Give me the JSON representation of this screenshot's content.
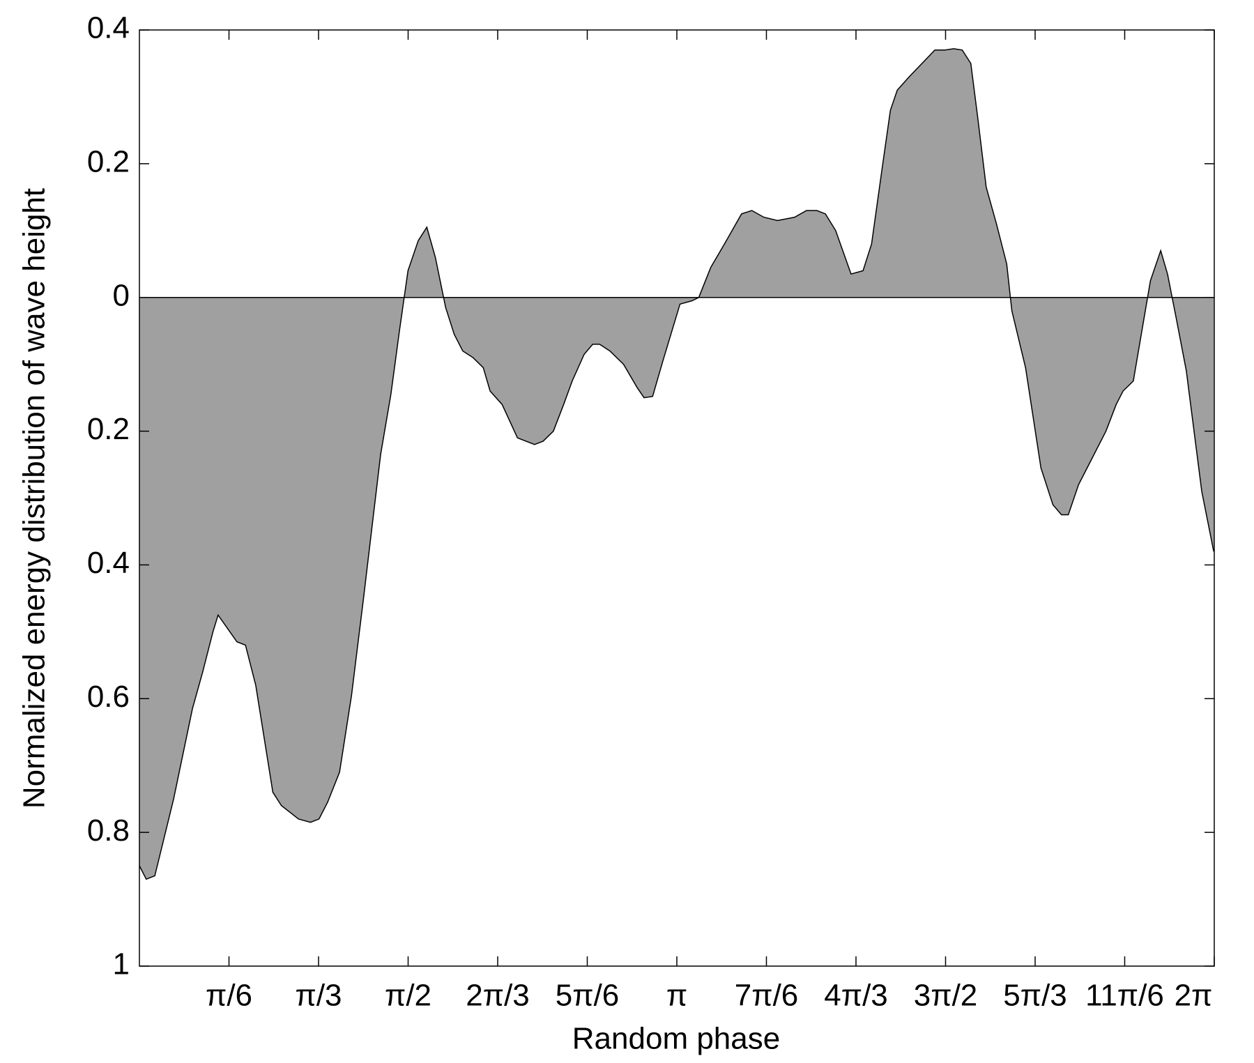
{
  "chart_data": {
    "type": "area",
    "x_label": "Random phase",
    "y_label": "Normalized energy distribution of wave height",
    "color": "#a0a0a0",
    "x": [
      0,
      0.04,
      0.09,
      0.2,
      0.31,
      0.37,
      0.43,
      0.46,
      0.57,
      0.62,
      0.68,
      0.78,
      0.83,
      0.93,
      1.0,
      1.05,
      1.1,
      1.17,
      1.24,
      1.31,
      1.41,
      1.47,
      1.52,
      1.57,
      1.63,
      1.68,
      1.73,
      1.79,
      1.84,
      1.89,
      1.95,
      2.01,
      2.05,
      2.12,
      2.21,
      2.31,
      2.36,
      2.42,
      2.48,
      2.53,
      2.6,
      2.65,
      2.69,
      2.75,
      2.83,
      2.91,
      2.95,
      3.0,
      3.06,
      3.16,
      3.23,
      3.27,
      3.34,
      3.42,
      3.52,
      3.58,
      3.65,
      3.73,
      3.83,
      3.9,
      3.96,
      4.01,
      4.07,
      4.16,
      4.23,
      4.28,
      4.34,
      4.39,
      4.43,
      4.5,
      4.65,
      4.71,
      4.76,
      4.81,
      4.86,
      4.9,
      4.95,
      5.01,
      5.07,
      5.1,
      5.18,
      5.27,
      5.34,
      5.39,
      5.43,
      5.49,
      5.56,
      5.65,
      5.71,
      5.75,
      5.81,
      5.91,
      5.97,
      6.01,
      6.06,
      6.12,
      6.21,
      6.28
    ],
    "values": [
      -0.85,
      -0.87,
      -0.865,
      -0.75,
      -0.615,
      -0.56,
      -0.5,
      -0.475,
      -0.515,
      -0.52,
      -0.58,
      -0.74,
      -0.76,
      -0.78,
      -0.785,
      -0.78,
      -0.755,
      -0.71,
      -0.595,
      -0.45,
      -0.235,
      -0.145,
      -0.05,
      0.04,
      0.085,
      0.105,
      0.06,
      -0.015,
      -0.055,
      -0.08,
      -0.09,
      -0.105,
      -0.14,
      -0.16,
      -0.21,
      -0.22,
      -0.215,
      -0.2,
      -0.16,
      -0.125,
      -0.085,
      -0.07,
      -0.07,
      -0.08,
      -0.1,
      -0.135,
      -0.15,
      -0.148,
      -0.095,
      -0.01,
      -0.005,
      0,
      0.045,
      0.08,
      0.125,
      0.13,
      0.12,
      0.115,
      0.12,
      0.13,
      0.13,
      0.125,
      0.1,
      0.035,
      0.04,
      0.08,
      0.19,
      0.28,
      0.31,
      0.33,
      0.37,
      0.37,
      0.372,
      0.37,
      0.35,
      0.27,
      0.165,
      0.11,
      0.05,
      -0.02,
      -0.105,
      -0.255,
      -0.31,
      -0.325,
      -0.325,
      -0.28,
      -0.245,
      -0.2,
      -0.16,
      -0.14,
      -0.125,
      0.025,
      0.07,
      0.035,
      -0.03,
      -0.11,
      -0.29,
      -0.38
    ],
    "xlim": [
      0,
      6.2832
    ],
    "ylim": [
      -1,
      0.4
    ],
    "xticks": [
      {
        "value": 0.5236,
        "label": "π/6"
      },
      {
        "value": 1.0472,
        "label": "π/3"
      },
      {
        "value": 1.5708,
        "label": "π/2"
      },
      {
        "value": 2.0944,
        "label": "2π/3"
      },
      {
        "value": 2.618,
        "label": "5π/6"
      },
      {
        "value": 3.1416,
        "label": "π"
      },
      {
        "value": 3.6652,
        "label": "7π/6"
      },
      {
        "value": 4.1888,
        "label": "4π/3"
      },
      {
        "value": 4.7124,
        "label": "3π/2"
      },
      {
        "value": 5.236,
        "label": "5π/3"
      },
      {
        "value": 5.7596,
        "label": "11π/6"
      },
      {
        "value": 6.2832,
        "label": "2π"
      }
    ],
    "yticks": [
      {
        "value": -1,
        "label": "1"
      },
      {
        "value": -0.8,
        "label": "0.8"
      },
      {
        "value": -0.6,
        "label": "0.6"
      },
      {
        "value": -0.4,
        "label": "0.4"
      },
      {
        "value": -0.2,
        "label": "0.2"
      },
      0,
      0.2,
      0.4
    ]
  }
}
